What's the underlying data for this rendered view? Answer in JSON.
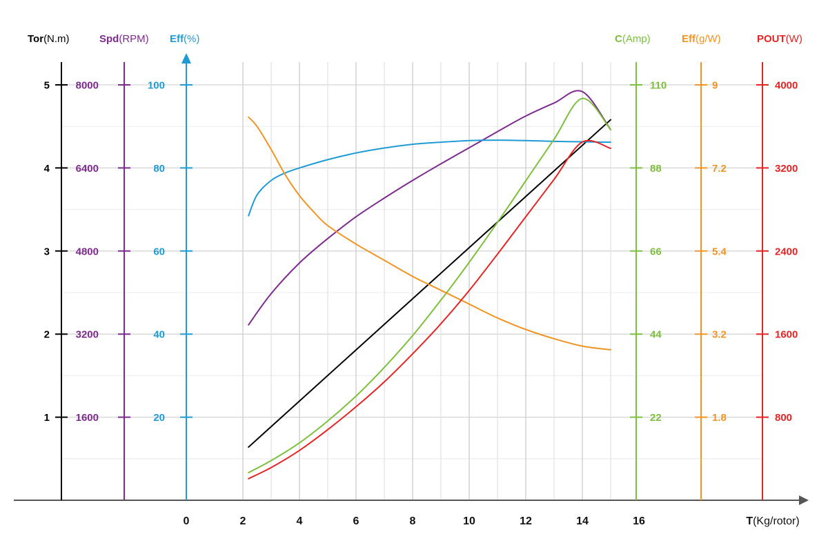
{
  "chart_data": {
    "type": "line",
    "title": "",
    "xlabel_bold": "T",
    "xlabel_unit": "(Kg/rotor)",
    "x_ticks": [
      "0",
      "2",
      "4",
      "6",
      "8",
      "10",
      "12",
      "14",
      "16"
    ],
    "xlim": [
      0,
      16
    ],
    "grid": true,
    "axes": [
      {
        "key": "tor",
        "name": "Tor",
        "unit": "(N.m)",
        "color": "#000000",
        "head_color": "#000000",
        "ticks": [
          "1",
          "2",
          "3",
          "4",
          "5"
        ],
        "max": 5,
        "side": "left"
      },
      {
        "key": "spd",
        "name": "Spd",
        "unit": "(RPM)",
        "color": "#7d2a8f",
        "head_color": "#7d2a8f",
        "ticks": [
          "1600",
          "3200",
          "4800",
          "6400",
          "8000"
        ],
        "max": 8000,
        "side": "left"
      },
      {
        "key": "eff",
        "name": "Eff",
        "unit": "(%)",
        "color": "#1e9bd4",
        "head_color": "#1e9bd4",
        "ticks": [
          "20",
          "40",
          "60",
          "80",
          "100"
        ],
        "max": 100,
        "side": "left"
      },
      {
        "key": "c",
        "name": "C",
        "unit": "(Amp)",
        "color": "#7cbf3c",
        "head_color": "#7cbf3c",
        "ticks": [
          "22",
          "44",
          "66",
          "88",
          "110"
        ],
        "max": 110,
        "side": "right"
      },
      {
        "key": "effg",
        "name": "Eff",
        "unit": "(g/W)",
        "color": "#f39322",
        "head_color": "#f39322",
        "ticks": [
          "1.8",
          "3.2",
          "5.4",
          "7.2",
          "9"
        ],
        "max": 9,
        "side": "right"
      },
      {
        "key": "pout",
        "name": "POUT",
        "unit": "(W)",
        "color": "#e52323",
        "head_color": "#e52323",
        "ticks": [
          "800",
          "1600",
          "2400",
          "3200",
          "4000"
        ],
        "max": 4000,
        "side": "right"
      }
    ],
    "series": [
      {
        "name": "Torque",
        "axis": "tor",
        "color": "#000000",
        "x": [
          2.2,
          15.0
        ],
        "y": [
          0.64,
          4.58
        ]
      },
      {
        "name": "Speed",
        "axis": "spd",
        "color": "#7d2a8f",
        "x": [
          2.2,
          3,
          4,
          5,
          6,
          7,
          8,
          9,
          10,
          11,
          12,
          13,
          14,
          15
        ],
        "y": [
          3380,
          3980,
          4570,
          5040,
          5460,
          5820,
          6160,
          6480,
          6790,
          7100,
          7400,
          7650,
          7870,
          7040
        ]
      },
      {
        "name": "Efficiency",
        "axis": "eff",
        "color": "#1e9bd4",
        "x": [
          2.2,
          2.5,
          3,
          3.5,
          4,
          5,
          6,
          7,
          8,
          9,
          10,
          11,
          12,
          13,
          14,
          15
        ],
        "y": [
          68.5,
          73.5,
          77,
          78.8,
          80,
          82,
          83.6,
          84.8,
          85.7,
          86.2,
          86.6,
          86.7,
          86.6,
          86.4,
          86.3,
          86.2
        ]
      },
      {
        "name": "Current",
        "axis": "c",
        "color": "#7cbf3c",
        "x": [
          2.2,
          3,
          4,
          5,
          6,
          7,
          8,
          9,
          10,
          11,
          12,
          13,
          14,
          15
        ],
        "y": [
          7.3,
          10.5,
          15.2,
          21,
          27.6,
          35.2,
          43.6,
          53,
          63,
          73.6,
          84.6,
          95.6,
          106.4,
          98.0
        ]
      },
      {
        "name": "Eff g/W",
        "axis": "effg",
        "color": "#f39322",
        "x": [
          2.2,
          2.5,
          3,
          3.5,
          4,
          4.5,
          5,
          6,
          7,
          8,
          9,
          10,
          11,
          12,
          13,
          14,
          15
        ],
        "y": [
          8.3,
          8.1,
          7.6,
          7.05,
          6.6,
          6.25,
          5.95,
          5.55,
          5.2,
          4.85,
          4.55,
          4.25,
          3.95,
          3.7,
          3.5,
          3.34,
          3.26
        ]
      },
      {
        "name": "Power Out",
        "axis": "pout",
        "color": "#e52323",
        "x": [
          2.2,
          3,
          4,
          5,
          6,
          7,
          8,
          9,
          10,
          11,
          12,
          13,
          14,
          15
        ],
        "y": [
          208,
          315,
          480,
          680,
          900,
          1140,
          1410,
          1700,
          2020,
          2370,
          2730,
          3090,
          3450,
          3400
        ]
      }
    ]
  }
}
